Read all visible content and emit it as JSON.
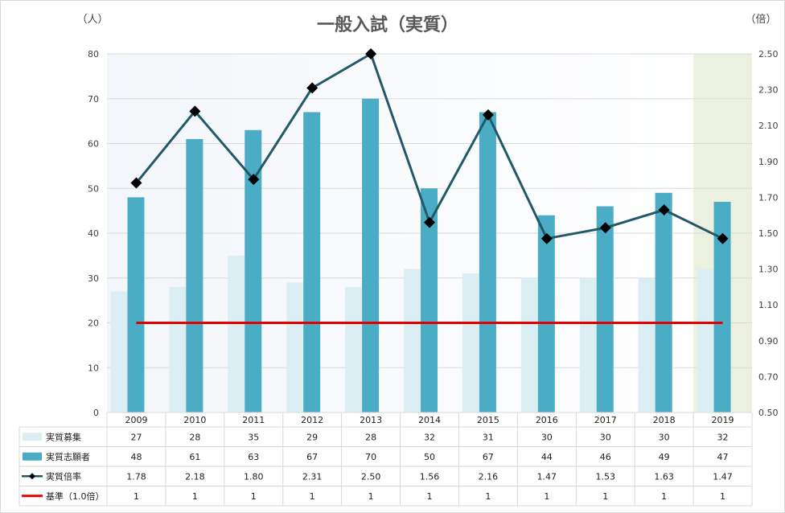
{
  "chart_data": {
    "type": "bar",
    "title": "一般入試（実質）",
    "y_left_unit": "（人）",
    "y_right_unit": "（倍）",
    "categories": [
      "2009",
      "2010",
      "2011",
      "2012",
      "2013",
      "2014",
      "2015",
      "2016",
      "2017",
      "2018",
      "2019"
    ],
    "y_left_ticks": [
      "0",
      "10",
      "20",
      "30",
      "40",
      "50",
      "60",
      "70",
      "80"
    ],
    "y_right_ticks": [
      "0.50",
      "0.70",
      "0.90",
      "1.10",
      "1.30",
      "1.50",
      "1.70",
      "1.90",
      "2.10",
      "2.30",
      "2.50"
    ],
    "y_left_range": [
      0,
      80
    ],
    "y_right_range": [
      0.5,
      2.5
    ],
    "grid": true,
    "highlight_category": "2019",
    "series": [
      {
        "name": "実質募集",
        "type": "bar",
        "axis": "left",
        "color": "#dbeef3",
        "values": [
          27,
          28,
          35,
          29,
          28,
          32,
          31,
          30,
          30,
          30,
          32
        ],
        "labels": [
          "27",
          "28",
          "35",
          "29",
          "28",
          "32",
          "31",
          "30",
          "30",
          "30",
          "32"
        ]
      },
      {
        "name": "実質志願者",
        "type": "bar",
        "axis": "left",
        "color": "#4bacc6",
        "values": [
          48,
          61,
          63,
          67,
          70,
          50,
          67,
          44,
          46,
          49,
          47
        ],
        "labels": [
          "48",
          "61",
          "63",
          "67",
          "70",
          "50",
          "67",
          "44",
          "46",
          "49",
          "47"
        ]
      },
      {
        "name": "実質倍率",
        "type": "line",
        "axis": "right",
        "color": "#215968",
        "marker_color": "#000000",
        "values": [
          1.78,
          2.18,
          1.8,
          2.31,
          2.5,
          1.56,
          2.16,
          1.47,
          1.53,
          1.63,
          1.47
        ],
        "labels": [
          "1.78",
          "2.18",
          "1.80",
          "2.31",
          "2.50",
          "1.56",
          "2.16",
          "1.47",
          "1.53",
          "1.63",
          "1.47"
        ]
      },
      {
        "name": "基準（1.0倍）",
        "type": "line",
        "axis": "right",
        "color": "#e00000",
        "values": [
          1,
          1,
          1,
          1,
          1,
          1,
          1,
          1,
          1,
          1,
          1
        ],
        "labels": [
          "1",
          "1",
          "1",
          "1",
          "1",
          "1",
          "1",
          "1",
          "1",
          "1",
          "1"
        ]
      }
    ]
  }
}
